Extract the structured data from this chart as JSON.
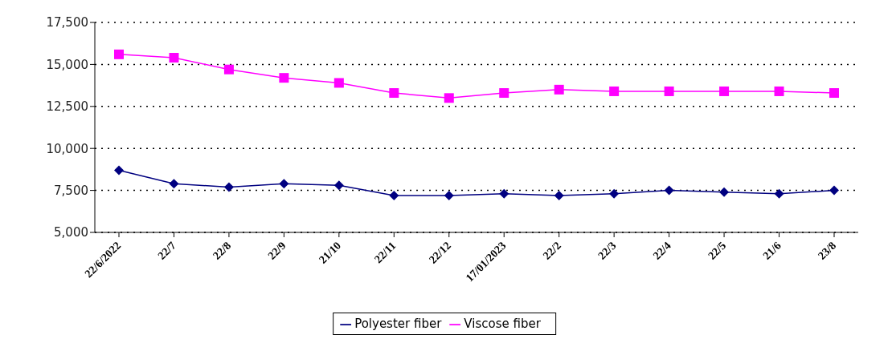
{
  "chart_data": {
    "type": "line",
    "categories": [
      "22/6/2022",
      "22/7",
      "22/8",
      "22/9",
      "21/10",
      "22/11",
      "22/12",
      "17/01/2023",
      "22/2",
      "22/3",
      "22/4",
      "22/5",
      "21/6",
      "23/8"
    ],
    "series": [
      {
        "name": "Polyester fiber",
        "color": "#000080",
        "marker": "diamond",
        "values": [
          8700,
          7900,
          7700,
          7900,
          7800,
          7200,
          7200,
          7300,
          7200,
          7300,
          7500,
          7400,
          7300,
          7500
        ]
      },
      {
        "name": "Viscose fiber",
        "color": "#ff00ff",
        "marker": "square",
        "values": [
          15600,
          15400,
          14700,
          14200,
          13900,
          13300,
          13000,
          13300,
          13500,
          13400,
          13400,
          13400,
          13400,
          13300
        ]
      }
    ],
    "ylim": [
      5000,
      17500
    ],
    "yticks": [
      {
        "value": 5000,
        "label": "5,000"
      },
      {
        "value": 7500,
        "label": "7,500"
      },
      {
        "value": 10000,
        "label": "10,000"
      },
      {
        "value": 12500,
        "label": "12,500"
      },
      {
        "value": 15000,
        "label": "15,000"
      },
      {
        "value": 17500,
        "label": "17,500"
      }
    ],
    "grid": "y",
    "legend": "bottom"
  }
}
